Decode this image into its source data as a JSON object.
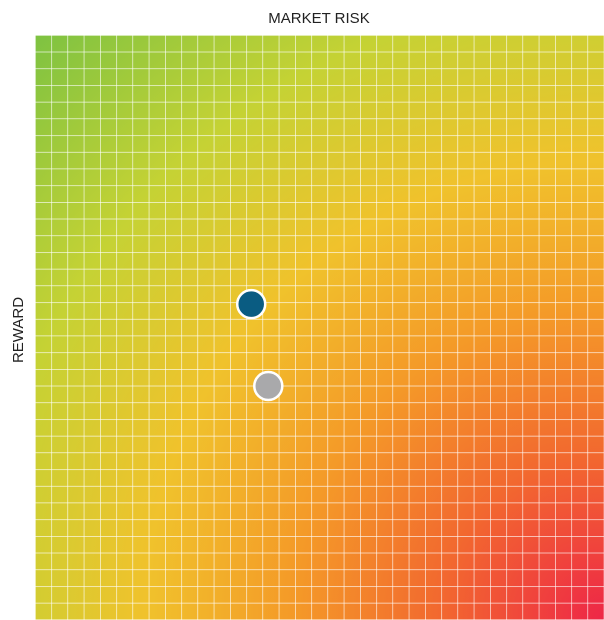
{
  "chart_data": {
    "type": "scatter",
    "xlabel": "MARKET RISK",
    "ylabel": "REWARD",
    "x": [
      38,
      41
    ],
    "values": [
      54,
      40
    ],
    "colors": [
      "#0a5c82",
      "#a9a9ab"
    ],
    "xlim": [
      0,
      100
    ],
    "ylim": [
      0,
      100
    ]
  }
}
